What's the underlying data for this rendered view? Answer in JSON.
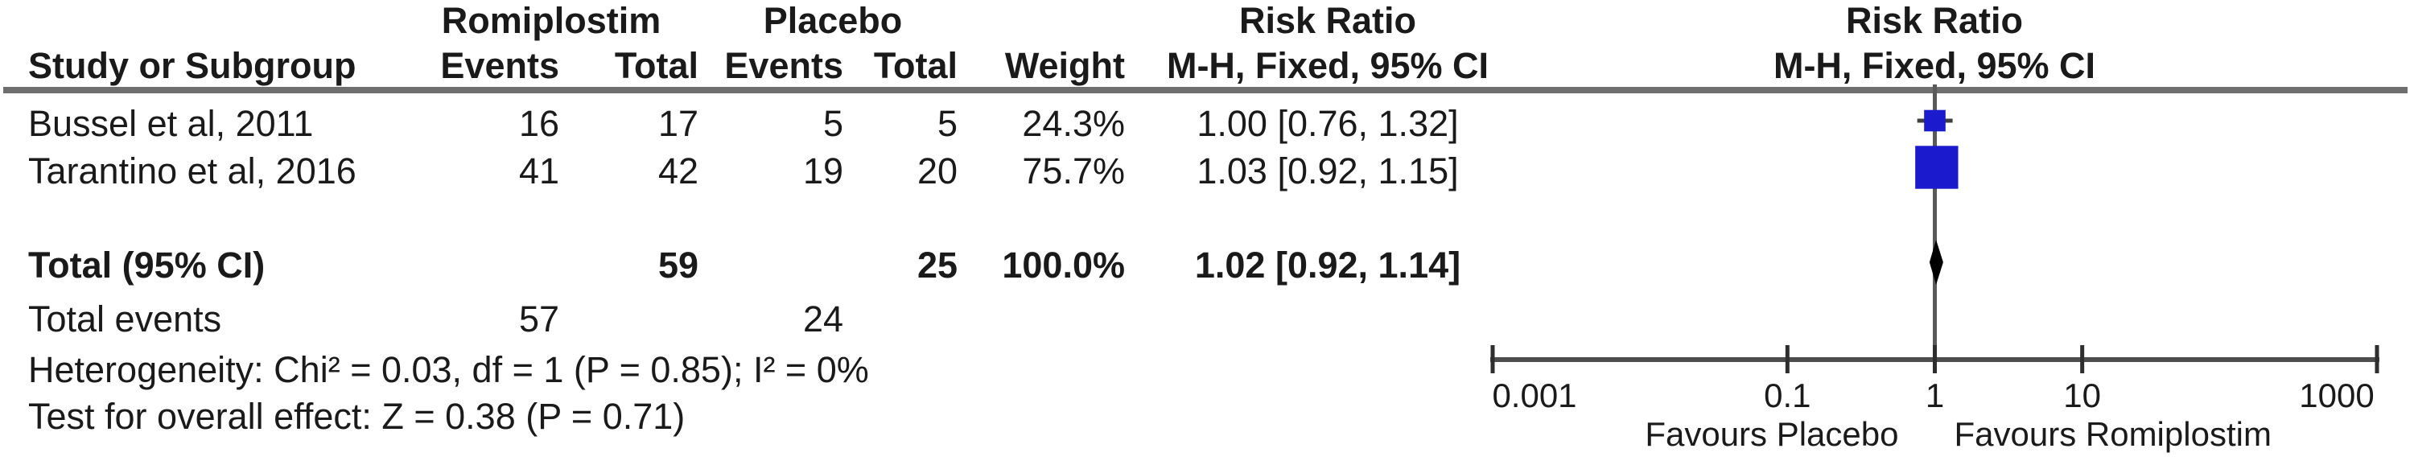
{
  "table": {
    "group1": "Romiplostim",
    "group2": "Placebo",
    "effect": {
      "title": "Risk Ratio",
      "subtitle": "M-H, Fixed, 95% CI"
    },
    "plot": {
      "title": "Risk Ratio",
      "subtitle": "M-H, Fixed, 95% CI"
    },
    "headers": {
      "study": "Study or Subgroup",
      "events": "Events",
      "total": "Total",
      "weight": "Weight"
    },
    "rows": [
      {
        "study": "Bussel et al, 2011",
        "e1": "16",
        "t1": "17",
        "e2": "5",
        "t2": "5",
        "weight": "24.3%",
        "ci": "1.00 [0.76, 1.32]"
      },
      {
        "study": "Tarantino et al, 2016",
        "e1": "41",
        "t1": "42",
        "e2": "19",
        "t2": "20",
        "weight": "75.7%",
        "ci": "1.03 [0.92, 1.15]"
      }
    ],
    "total_row": {
      "label": "Total (95% CI)",
      "t1": "59",
      "t2": "25",
      "weight": "100.0%",
      "ci": "1.02 [0.92, 1.14]"
    },
    "total_events": {
      "label": "Total events",
      "e1": "57",
      "e2": "24"
    },
    "heterogeneity": "Heterogeneity: Chi² = 0.03, df = 1 (P = 0.85); I² = 0%",
    "overall_effect": "Test for overall effect: Z = 0.38 (P = 0.71)"
  },
  "chart_data": {
    "type": "scatter",
    "subtype": "forest_plot",
    "title": "Risk Ratio",
    "effect_measure": "M-H, Fixed, 95% CI",
    "x_scale": "log",
    "xlim": [
      0.001,
      1000
    ],
    "x_ticks": [
      0.001,
      0.1,
      1,
      10,
      1000
    ],
    "x_tick_labels": [
      "0.001",
      "0.1",
      "1",
      "10",
      "1000"
    ],
    "axis_label_left": "Favours Placebo",
    "axis_label_right": "Favours Romiplostim",
    "no_effect_value": 1,
    "studies": [
      {
        "name": "Bussel et al, 2011",
        "rr": 1.0,
        "ci_low": 0.76,
        "ci_high": 1.32,
        "weight_pct": 24.3
      },
      {
        "name": "Tarantino et al, 2016",
        "rr": 1.03,
        "ci_low": 0.92,
        "ci_high": 1.15,
        "weight_pct": 75.7
      }
    ],
    "total": {
      "label": "Total (95% CI)",
      "rr": 1.02,
      "ci_low": 0.92,
      "ci_high": 1.14
    },
    "marker_color": "#1b1bcd",
    "diamond_color": "#000000",
    "line_color": "#5a5a5a",
    "axis_color": "#4d4d4d"
  }
}
